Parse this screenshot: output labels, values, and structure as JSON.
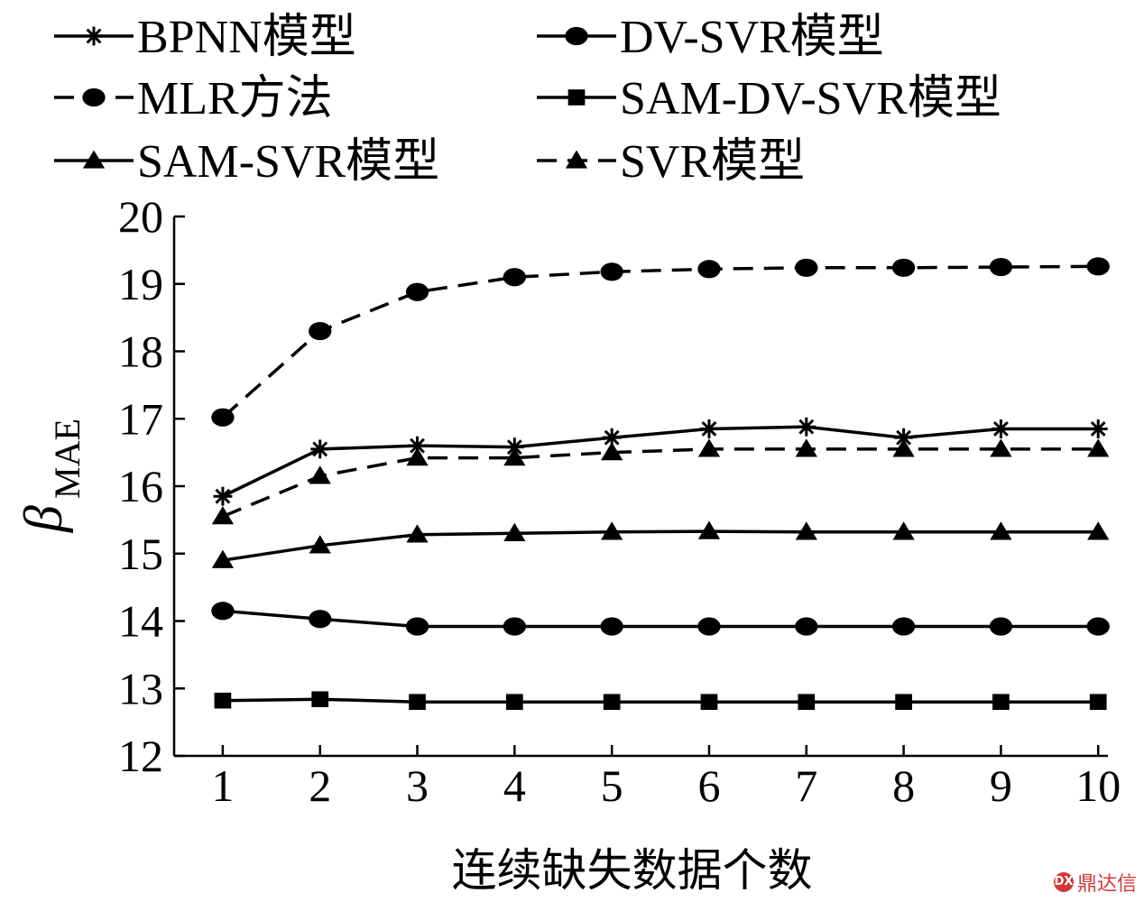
{
  "chart_data": {
    "type": "line",
    "xlabel": "连续缺失数据个数",
    "ylabel_main": "β",
    "ylabel_sub": "MAE",
    "x": [
      1,
      2,
      3,
      4,
      5,
      6,
      7,
      8,
      9,
      10
    ],
    "xlim": [
      0.5,
      10.1
    ],
    "ylim": [
      12,
      20
    ],
    "yticks": [
      12,
      13,
      14,
      15,
      16,
      17,
      18,
      19,
      20
    ],
    "legend_position": "top",
    "series": [
      {
        "name": "BPNN模型",
        "values": [
          15.85,
          16.55,
          16.6,
          16.58,
          16.72,
          16.85,
          16.88,
          16.72,
          16.85,
          16.85
        ],
        "marker": "star",
        "dash": false
      },
      {
        "name": "DV-SVR模型",
        "values": [
          14.15,
          14.03,
          13.92,
          13.92,
          13.92,
          13.92,
          13.92,
          13.92,
          13.92,
          13.92
        ],
        "marker": "circle",
        "dash": false
      },
      {
        "name": "MLR方法",
        "values": [
          17.02,
          18.3,
          18.88,
          19.1,
          19.18,
          19.22,
          19.24,
          19.24,
          19.25,
          19.26
        ],
        "marker": "circle",
        "dash": true
      },
      {
        "name": "SAM-DV-SVR模型",
        "values": [
          12.82,
          12.84,
          12.8,
          12.8,
          12.8,
          12.8,
          12.8,
          12.8,
          12.8,
          12.8
        ],
        "marker": "square",
        "dash": false
      },
      {
        "name": "SAM-SVR模型",
        "values": [
          14.9,
          15.12,
          15.28,
          15.3,
          15.32,
          15.33,
          15.32,
          15.32,
          15.32,
          15.32
        ],
        "marker": "triangle",
        "dash": false
      },
      {
        "name": "SVR模型",
        "values": [
          15.55,
          16.15,
          16.42,
          16.42,
          16.5,
          16.55,
          16.55,
          16.55,
          16.55,
          16.55
        ],
        "marker": "triangle",
        "dash": true
      }
    ]
  },
  "watermark": {
    "icon": "DX",
    "text": "鼎达信"
  }
}
